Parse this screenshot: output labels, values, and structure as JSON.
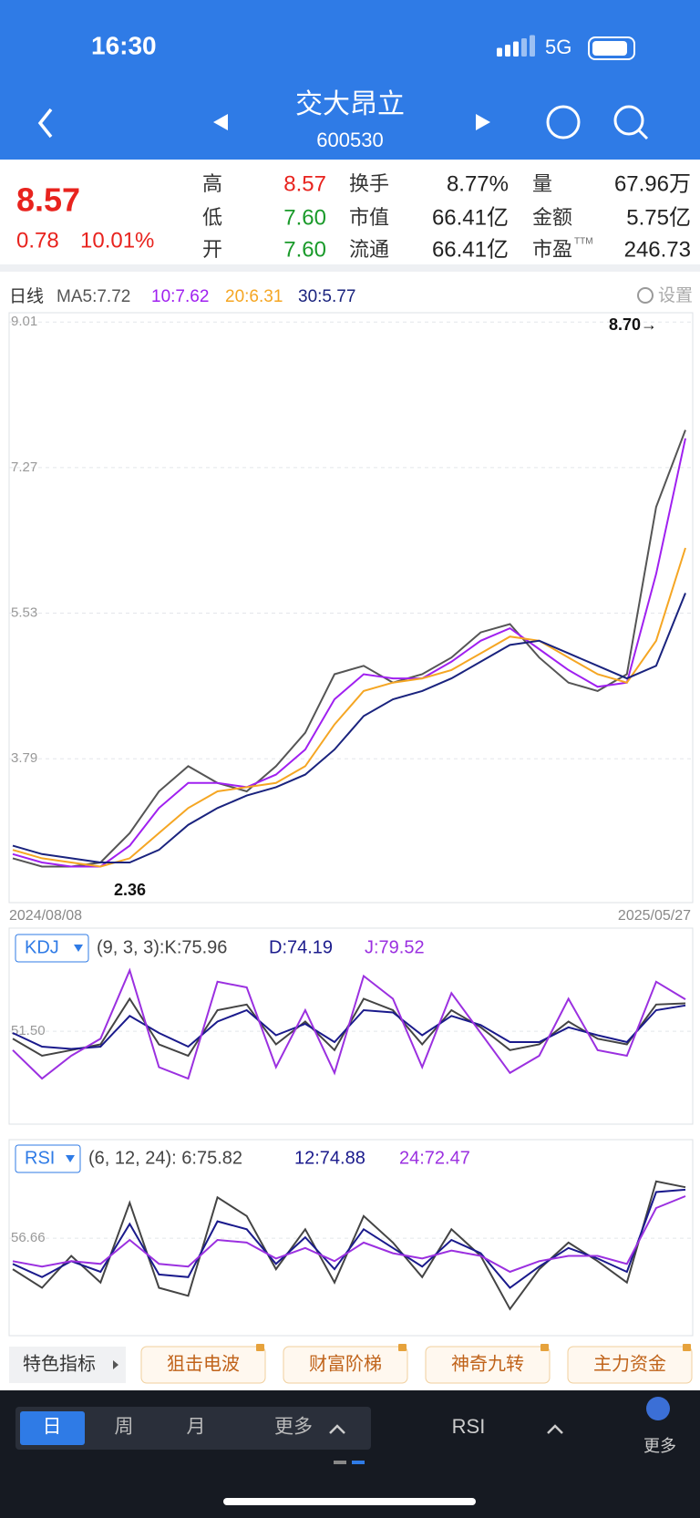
{
  "status_bar": {
    "time": "16:30",
    "network": "5G"
  },
  "header": {
    "title": "交大昂立",
    "code": "600530"
  },
  "quote": {
    "price": "8.57",
    "change": "0.78",
    "change_pct": "10.01%",
    "stats": [
      {
        "label": "高",
        "value": "8.57"
      },
      {
        "label": "换手",
        "value": "8.77%"
      },
      {
        "label": "量",
        "value": "67.96万"
      },
      {
        "label": "低",
        "value": "7.60"
      },
      {
        "label": "市值",
        "value": "66.41亿"
      },
      {
        "label": "金额",
        "value": "5.75亿"
      },
      {
        "label": "开",
        "value": "7.60"
      },
      {
        "label": "流通",
        "value": "66.41亿"
      },
      {
        "label": "市盈",
        "sup": "TTM",
        "value": "246.73"
      }
    ]
  },
  "period": "日线",
  "settings": "设置",
  "chart_data": [
    {
      "type": "line",
      "categories": [
        "2024/08/08",
        null,
        null,
        null,
        null,
        null,
        null,
        null,
        null,
        null,
        null,
        null,
        null,
        null,
        null,
        null,
        null,
        null,
        null,
        null,
        null,
        null,
        null,
        "2025/05/27"
      ],
      "series": [
        {
          "name": "MA5:7.72",
          "color": "#555555",
          "values": [
            2.6,
            2.5,
            2.5,
            2.55,
            2.9,
            3.4,
            3.7,
            3.5,
            3.4,
            3.7,
            4.1,
            4.8,
            4.9,
            4.7,
            4.8,
            5.0,
            5.3,
            5.4,
            5.0,
            4.7,
            4.6,
            4.8,
            6.8,
            7.72
          ]
        },
        {
          "name": "10:7.62",
          "color": "#a020f0",
          "values": [
            2.65,
            2.55,
            2.5,
            2.5,
            2.75,
            3.2,
            3.5,
            3.5,
            3.45,
            3.6,
            3.9,
            4.5,
            4.8,
            4.75,
            4.75,
            4.95,
            5.2,
            5.35,
            5.1,
            4.85,
            4.65,
            4.7,
            6.0,
            7.62
          ]
        },
        {
          "name": "20:6.31",
          "color": "#f5a623",
          "values": [
            2.7,
            2.6,
            2.55,
            2.5,
            2.6,
            2.9,
            3.2,
            3.4,
            3.45,
            3.5,
            3.7,
            4.2,
            4.6,
            4.7,
            4.75,
            4.85,
            5.05,
            5.25,
            5.2,
            5.0,
            4.8,
            4.7,
            5.2,
            6.31
          ]
        },
        {
          "name": "30:5.77",
          "color": "#1a237e",
          "values": [
            2.75,
            2.65,
            2.6,
            2.55,
            2.55,
            2.7,
            3.0,
            3.2,
            3.35,
            3.45,
            3.6,
            3.9,
            4.3,
            4.5,
            4.6,
            4.75,
            4.95,
            5.15,
            5.2,
            5.05,
            4.9,
            4.75,
            4.9,
            5.77
          ]
        }
      ],
      "ylim": [
        2.07,
        9.1
      ],
      "yticks": [
        9.01,
        7.27,
        5.53,
        3.79
      ],
      "grid": true,
      "annotations": [
        "8.70→",
        "2.36"
      ]
    },
    {
      "type": "line",
      "title": "KDJ",
      "series": [
        {
          "name": "(9, 3, 3):K:75.96",
          "color": "#444444",
          "values": [
            45,
            30,
            35,
            40,
            80,
            40,
            30,
            70,
            75,
            40,
            60,
            35,
            80,
            70,
            40,
            70,
            55,
            35,
            40,
            60,
            45,
            40,
            75,
            75.96
          ]
        },
        {
          "name": "D:74.19",
          "color": "#1a1a8c",
          "values": [
            50,
            38,
            36,
            38,
            65,
            50,
            38,
            60,
            70,
            48,
            58,
            42,
            70,
            68,
            48,
            65,
            57,
            42,
            42,
            55,
            48,
            42,
            70,
            74.19
          ]
        },
        {
          "name": "J:79.52",
          "color": "#9b30e0",
          "values": [
            35,
            10,
            30,
            45,
            105,
            20,
            10,
            95,
            90,
            20,
            70,
            15,
            100,
            80,
            20,
            85,
            50,
            15,
            30,
            80,
            35,
            30,
            95,
            79.52
          ]
        }
      ],
      "ylim": [
        -30,
        110
      ],
      "yticks": [
        {
          "value": 51.5,
          "label": "51.50"
        }
      ],
      "grid": true
    },
    {
      "type": "line",
      "title": "RSI",
      "series": [
        {
          "name": "(6, 12, 24): 6:75.82",
          "color": "#444444",
          "values": [
            45,
            38,
            50,
            40,
            70,
            38,
            35,
            72,
            65,
            45,
            60,
            40,
            65,
            55,
            42,
            60,
            50,
            30,
            45,
            55,
            48,
            40,
            78,
            75.82
          ]
        },
        {
          "name": "12:74.88",
          "color": "#1a1a8c",
          "values": [
            47,
            42,
            48,
            44,
            62,
            43,
            42,
            63,
            60,
            47,
            57,
            45,
            60,
            53,
            46,
            56,
            51,
            38,
            46,
            53,
            49,
            44,
            74,
            74.88
          ]
        },
        {
          "name": "24:72.47",
          "color": "#9b30e0",
          "values": [
            48,
            46,
            48,
            47,
            56,
            47,
            46,
            56,
            55,
            49,
            53,
            48,
            55,
            51,
            49,
            52,
            50,
            44,
            48,
            50,
            50,
            47,
            68,
            72.47
          ]
        }
      ],
      "ylim": [
        20,
        80
      ],
      "yticks": [
        56.66
      ],
      "grid": true
    }
  ],
  "indicator_bar": {
    "label": "特色指标",
    "buttons": [
      "狙击电波",
      "财富阶梯",
      "神奇九转",
      "主力资金"
    ]
  },
  "bottom_bar": {
    "tabs": [
      "日",
      "周",
      "月",
      "更多"
    ],
    "indicator": "RSI",
    "more": "更多"
  }
}
